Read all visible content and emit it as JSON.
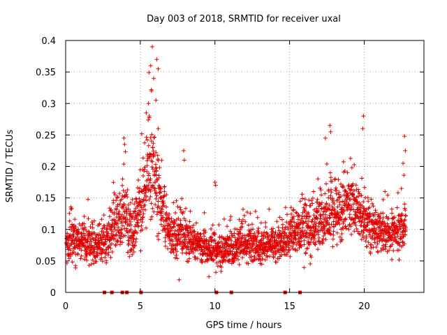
{
  "chart_data": {
    "type": "scatter",
    "title": "Day 003 of 2018, SRMTID for receiver uxal",
    "xlabel": "GPS time / hours",
    "ylabel": "SRMTID / TECUs",
    "xlim": [
      0,
      24
    ],
    "ylim": [
      0,
      0.4
    ],
    "xticks": [
      0,
      5,
      10,
      15,
      20
    ],
    "xtick_labels": [
      "0",
      "5",
      "10",
      "15",
      "20"
    ],
    "yticks": [
      0,
      0.05,
      0.1,
      0.15,
      0.2,
      0.25,
      0.3,
      0.35,
      0.4
    ],
    "ytick_labels": [
      "0",
      "0.05",
      "0.1",
      "0.15",
      "0.2",
      "0.25",
      "0.3",
      "0.35",
      "0.4"
    ],
    "grid": true,
    "marker": "+",
    "color": "#e00000",
    "x_range_of_points": [
      0,
      22.8
    ],
    "envelope": {
      "description": "estimated typical SRMTID level and spread by hour",
      "hours": [
        0,
        1,
        2,
        3,
        3.8,
        4.5,
        5,
        5.5,
        5.9,
        6.4,
        7,
        8,
        9,
        10,
        11,
        12,
        13,
        14,
        15,
        16,
        17,
        18,
        18.5,
        19,
        19.5,
        20,
        21,
        22,
        22.8
      ],
      "center": [
        0.085,
        0.08,
        0.072,
        0.085,
        0.13,
        0.09,
        0.14,
        0.19,
        0.2,
        0.13,
        0.09,
        0.085,
        0.075,
        0.065,
        0.07,
        0.075,
        0.075,
        0.075,
        0.085,
        0.1,
        0.115,
        0.12,
        0.135,
        0.14,
        0.13,
        0.11,
        0.095,
        0.095,
        0.11
      ],
      "spread": [
        0.03,
        0.025,
        0.02,
        0.03,
        0.045,
        0.025,
        0.045,
        0.06,
        0.065,
        0.04,
        0.025,
        0.025,
        0.02,
        0.02,
        0.02,
        0.02,
        0.02,
        0.02,
        0.025,
        0.035,
        0.035,
        0.04,
        0.045,
        0.04,
        0.035,
        0.03,
        0.025,
        0.025,
        0.035
      ]
    },
    "notable_points": [
      {
        "x": 5.8,
        "y": 0.39
      },
      {
        "x": 5.7,
        "y": 0.36
      },
      {
        "x": 6.1,
        "y": 0.37
      },
      {
        "x": 6.2,
        "y": 0.355
      },
      {
        "x": 5.9,
        "y": 0.34
      },
      {
        "x": 5.75,
        "y": 0.32
      },
      {
        "x": 6.05,
        "y": 0.305
      },
      {
        "x": 5.55,
        "y": 0.3
      },
      {
        "x": 5.4,
        "y": 0.285
      },
      {
        "x": 5.6,
        "y": 0.28
      },
      {
        "x": 6.2,
        "y": 0.26
      },
      {
        "x": 3.9,
        "y": 0.245
      },
      {
        "x": 3.95,
        "y": 0.235
      },
      {
        "x": 19.95,
        "y": 0.28
      },
      {
        "x": 19.9,
        "y": 0.26
      },
      {
        "x": 17.7,
        "y": 0.265
      },
      {
        "x": 17.75,
        "y": 0.255
      },
      {
        "x": 17.4,
        "y": 0.245
      },
      {
        "x": 22.7,
        "y": 0.248
      },
      {
        "x": 22.75,
        "y": 0.225
      },
      {
        "x": 22.6,
        "y": 0.205
      },
      {
        "x": 7.9,
        "y": 0.225
      },
      {
        "x": 7.95,
        "y": 0.21
      },
      {
        "x": 10.0,
        "y": 0.175
      },
      {
        "x": 10.05,
        "y": 0.17
      },
      {
        "x": 7.6,
        "y": 0.02
      },
      {
        "x": 9.6,
        "y": 0.025
      }
    ],
    "zero_markers_x": [
      2.6,
      3.1,
      3.8,
      4.1,
      5.05,
      10.1,
      11.1,
      14.7,
      15.7
    ]
  }
}
